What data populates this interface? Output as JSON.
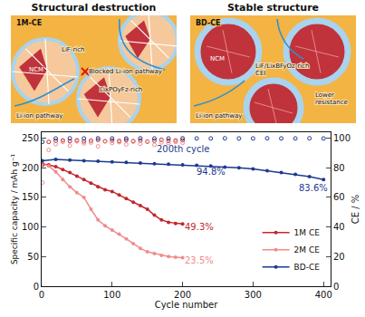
{
  "diagram": {
    "panels": [
      {
        "title": "Structural destruction",
        "label": "1M-CE",
        "texts": [
          [
            "LiF-rich"
          ],
          [
            "NCM"
          ],
          [
            "Blocked Li-ion pathway"
          ],
          [
            "LixPOyFz-rich"
          ],
          [
            "Li-ion pathway"
          ]
        ]
      },
      {
        "title": "Stable structure",
        "label": "BD-CE",
        "texts": [
          [
            "NCM"
          ],
          [
            "LiF/LixBFyOz-rich",
            "CEI"
          ],
          [
            "Lower",
            "resistance"
          ],
          [
            "Li-ion pathway"
          ]
        ]
      }
    ]
  },
  "chart_data": {
    "type": "scatter",
    "x_label": "Cycle number",
    "y_label": "Specific capacity / mAh g⁻¹",
    "y2_label": "CE / %",
    "xlim": [
      0,
      410
    ],
    "xticks": [
      0,
      100,
      200,
      300,
      400
    ],
    "ylim": [
      0,
      260
    ],
    "yticks": [
      0,
      50,
      100,
      150,
      200,
      250
    ],
    "y2lim": [
      0,
      104
    ],
    "y2ticks": [
      0,
      20,
      40,
      60,
      80,
      100
    ],
    "grid": false,
    "legend": "lower right",
    "series": [
      {
        "name": "1M CE",
        "color": "#c1272d",
        "marker": "circle",
        "x": [
          1,
          10,
          20,
          30,
          40,
          50,
          60,
          70,
          80,
          90,
          100,
          110,
          120,
          130,
          140,
          150,
          160,
          170,
          180,
          190,
          200
        ],
        "values": [
          207,
          205,
          202,
          197,
          192,
          186,
          180,
          174,
          168,
          163,
          160,
          154,
          148,
          142,
          136,
          130,
          120,
          112,
          108,
          106,
          105
        ]
      },
      {
        "name": "2M CE",
        "color": "#f08c8c",
        "marker": "circle",
        "x": [
          1,
          10,
          20,
          30,
          40,
          50,
          60,
          70,
          80,
          90,
          100,
          110,
          120,
          130,
          140,
          150,
          160,
          170,
          180,
          190,
          200
        ],
        "values": [
          207,
          203,
          193,
          180,
          168,
          158,
          150,
          130,
          112,
          102,
          95,
          88,
          80,
          72,
          64,
          58,
          55,
          52,
          50,
          49,
          48
        ]
      },
      {
        "name": "BD-CE",
        "color": "#1d3a8f",
        "marker": "circle",
        "x": [
          1,
          20,
          40,
          60,
          80,
          100,
          120,
          140,
          160,
          180,
          200,
          220,
          240,
          260,
          280,
          300,
          320,
          340,
          360,
          380,
          400
        ],
        "values": [
          212,
          214,
          213,
          212,
          211,
          210,
          209,
          208,
          207,
          206,
          205,
          204,
          203,
          201,
          200,
          198,
          195,
          192,
          189,
          185,
          180
        ]
      },
      {
        "name": "1M CE",
        "color": "#c1272d",
        "marker": "circle-open",
        "axis": "y2",
        "x": [
          1,
          10,
          20,
          30,
          40,
          50,
          60,
          70,
          80,
          90,
          100,
          110,
          120,
          130,
          140,
          150,
          160,
          170,
          180,
          190,
          200
        ],
        "values": [
          82,
          97.5,
          98.2,
          98.5,
          98,
          98.6,
          97.8,
          98.3,
          98.8,
          97.9,
          98.4,
          98.1,
          98.7,
          98,
          98.5,
          97.6,
          98.3,
          98.9,
          98.2,
          98.4,
          98.6
        ]
      },
      {
        "name": "2M CE",
        "color": "#f08c8c",
        "marker": "circle-open",
        "axis": "y2",
        "x": [
          1,
          10,
          20,
          30,
          40,
          50,
          60,
          70,
          80,
          90,
          100,
          110,
          120,
          130,
          140,
          150,
          160,
          170,
          180,
          190,
          200
        ],
        "values": [
          70,
          92,
          96,
          97.5,
          95,
          97.8,
          96.5,
          97,
          94.5,
          98,
          96.8,
          97.3,
          95.8,
          97.6,
          96.2,
          97.9,
          95.5,
          97.1,
          96.7,
          97.4,
          96.9
        ]
      },
      {
        "name": "BD-CE",
        "color": "#1d3a8f",
        "marker": "circle-open",
        "axis": "y2",
        "x": [
          1,
          20,
          40,
          60,
          80,
          100,
          120,
          140,
          160,
          180,
          200,
          220,
          240,
          260,
          280,
          300,
          320,
          340,
          360,
          380,
          400
        ],
        "values": [
          97.5,
          99.8,
          99.9,
          99.8,
          99.9,
          99.8,
          99.8,
          99.9,
          99.8,
          99.8,
          99.9,
          99.8,
          99.8,
          99.9,
          99.8,
          99.8,
          99.9,
          99.8,
          99.8,
          99.9,
          99.8
        ]
      }
    ],
    "annotations": [
      {
        "text": "200th cycle",
        "x": 200,
        "y": 232,
        "color": "#1d3a8f"
      },
      {
        "text": "94.8%",
        "x": 240,
        "y": 194,
        "color": "#1d3a8f"
      },
      {
        "text": "83.6%",
        "x": 385,
        "y": 166,
        "color": "#1d3a8f"
      },
      {
        "text": "49.3%",
        "x": 224,
        "y": 100,
        "color": "#c1272d"
      },
      {
        "text": "23.5%",
        "x": 224,
        "y": 44,
        "color": "#f08c8c"
      }
    ]
  }
}
